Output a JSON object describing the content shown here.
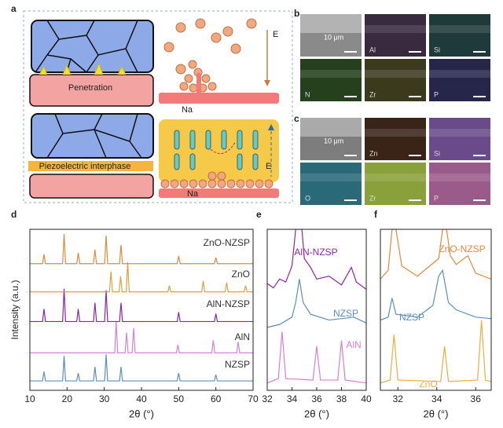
{
  "panel_labels": [
    "a",
    "b",
    "c",
    "d",
    "e",
    "f"
  ],
  "schematic": {
    "penetration": "Penetration",
    "interphase": "Piezoelectric interphase",
    "na_top": "Na",
    "na_bottom": "Na",
    "field_top": "E",
    "field_bottom": "E"
  },
  "eds": [
    {
      "tiles": [
        {
          "label": "10 μm",
          "color": "#8a8a8a"
        },
        {
          "label": "Al",
          "color": "#3a2a40"
        },
        {
          "label": "Si",
          "color": "#1f3a3a"
        },
        {
          "label": "N",
          "color": "#24401c"
        },
        {
          "label": "Zr",
          "color": "#3c3a1c"
        },
        {
          "label": "P",
          "color": "#26264a"
        }
      ]
    },
    {
      "tiles": [
        {
          "label": "10 μm",
          "color": "#7d7d7d"
        },
        {
          "label": "Zn",
          "color": "#3a2418"
        },
        {
          "label": "Si",
          "color": "#6a4a8a"
        },
        {
          "label": "O",
          "color": "#2a6a78"
        },
        {
          "label": "Zr",
          "color": "#8aa03a"
        },
        {
          "label": "P",
          "color": "#9a5a8a"
        }
      ]
    }
  ],
  "chart_data": [
    {
      "type": "line",
      "x_label": "2θ (°)",
      "y_label": "Intensity (a.u.)",
      "xlim": [
        10,
        70
      ],
      "xticks": [
        10,
        20,
        30,
        40,
        50,
        60,
        70
      ],
      "ylim": [
        0,
        10.3
      ],
      "label_color": "#333333",
      "series": [
        {
          "name": "NZSP",
          "color": "#5b8fbf",
          "x": [
            10,
            13.4,
            13.8,
            14.2,
            18.8,
            19.2,
            19.6,
            22.6,
            23,
            23.4,
            27.1,
            27.5,
            27.9,
            30.1,
            30.5,
            30.9,
            34.1,
            34.5,
            34.9,
            49.6,
            50,
            50.4,
            59.6,
            60,
            60.4,
            70
          ],
          "values": [
            0.6,
            0.6,
            1.2,
            0.6,
            0.6,
            2.2,
            0.6,
            0.6,
            1.1,
            0.6,
            0.6,
            1.5,
            0.6,
            0.6,
            2.3,
            0.6,
            0.6,
            1.5,
            0.6,
            0.6,
            1.1,
            0.6,
            0.6,
            1.0,
            0.6,
            0.6
          ]
        },
        {
          "name": "AlN",
          "color": "#d67fd6",
          "x": [
            10,
            32.8,
            33.2,
            33.6,
            35.6,
            36,
            36.4,
            37.5,
            37.9,
            38.3,
            49.4,
            49.8,
            50.2,
            58.9,
            59.3,
            59.7,
            65.6,
            66,
            66.4,
            70
          ],
          "values": [
            2.4,
            2.4,
            4.4,
            2.4,
            2.4,
            3.7,
            2.4,
            2.4,
            4.0,
            2.4,
            2.4,
            2.9,
            2.4,
            2.4,
            3.2,
            2.4,
            2.4,
            3.1,
            2.4,
            2.4
          ]
        },
        {
          "name": "AlN-NZSP",
          "color": "#8e24aa",
          "x": [
            10,
            13.4,
            13.8,
            14.2,
            18.8,
            19.2,
            19.6,
            22.6,
            23,
            23.4,
            27.1,
            27.5,
            27.9,
            30.1,
            30.5,
            30.9,
            34.1,
            34.5,
            34.9,
            49.6,
            50,
            50.4,
            59.6,
            60,
            60.4,
            70
          ],
          "values": [
            4.4,
            4.4,
            5.2,
            4.4,
            4.4,
            6.5,
            4.4,
            4.4,
            5.2,
            4.4,
            4.4,
            5.6,
            4.4,
            4.4,
            6.4,
            4.4,
            4.4,
            5.6,
            4.4,
            4.4,
            5.0,
            4.4,
            4.4,
            4.9,
            4.4,
            4.4
          ]
        },
        {
          "name": "ZnO",
          "color": "#e0a040",
          "x": [
            10,
            31.4,
            31.8,
            32.2,
            34,
            34.4,
            34.8,
            35.9,
            36.3,
            36.7,
            47.1,
            47.5,
            47.9,
            56.2,
            56.6,
            57,
            62.5,
            62.9,
            63.3,
            67.6,
            68,
            68.4,
            70
          ],
          "values": [
            6.3,
            6.3,
            7.6,
            6.3,
            6.3,
            7.3,
            6.3,
            6.3,
            8.2,
            6.3,
            6.3,
            6.7,
            6.3,
            6.3,
            7.0,
            6.3,
            6.3,
            6.9,
            6.3,
            6.3,
            6.7,
            6.3,
            6.3
          ]
        },
        {
          "name": "ZnO-NZSP",
          "color": "#e08a3c",
          "x": [
            10,
            13.4,
            13.8,
            14.2,
            18.8,
            19.2,
            19.6,
            22.6,
            23,
            23.4,
            27.1,
            27.5,
            27.9,
            30.1,
            30.5,
            30.9,
            34.1,
            34.5,
            34.9,
            49.6,
            50,
            50.4,
            59.6,
            60,
            60.4,
            70
          ],
          "values": [
            8.1,
            8.1,
            8.7,
            8.1,
            8.1,
            10.0,
            8.1,
            8.1,
            8.8,
            8.1,
            8.1,
            9.0,
            8.1,
            8.1,
            9.9,
            8.1,
            8.1,
            9.3,
            8.1,
            8.1,
            8.6,
            8.1,
            8.1,
            8.5,
            8.1,
            8.1
          ]
        }
      ]
    },
    {
      "type": "line",
      "x_label": "2θ (°)",
      "xlim": [
        32,
        40
      ],
      "xticks": [
        32,
        34,
        36,
        38,
        40
      ],
      "ylim": [
        0,
        11
      ],
      "series": [
        {
          "name": "AlN",
          "color": "#d67fd6",
          "x": [
            32,
            32.9,
            33.2,
            33.5,
            35.7,
            36,
            36.3,
            37.7,
            38,
            38.3,
            40
          ],
          "values": [
            0.5,
            0.8,
            4.0,
            0.8,
            0.7,
            3.0,
            0.7,
            0.7,
            3.4,
            0.7,
            0.5
          ]
        },
        {
          "name": "NZSP",
          "color": "#5b8fbf",
          "x": [
            32,
            33,
            34,
            34.3,
            34.6,
            34.9,
            35.5,
            37,
            39,
            40
          ],
          "values": [
            4.3,
            4.5,
            5.0,
            6.0,
            7.6,
            6.0,
            5.2,
            4.8,
            5.0,
            4.6
          ]
        },
        {
          "name": "AlN-NZSP",
          "color": "#8e24aa",
          "x": [
            32,
            32.5,
            33,
            33.5,
            34,
            34.3,
            34.5,
            34.8,
            35,
            35.5,
            36,
            37,
            38,
            38.8,
            39.2,
            40
          ],
          "values": [
            7.3,
            7.0,
            7.6,
            7.4,
            8.5,
            11,
            11,
            11,
            9.0,
            8.4,
            7.6,
            7.8,
            7.2,
            8.4,
            7.4,
            6.9
          ]
        }
      ]
    },
    {
      "type": "line",
      "x_label": "2θ (°)",
      "xlim": [
        31.1,
        36.8
      ],
      "xticks": [
        32,
        34,
        36
      ],
      "ylim": [
        0,
        11
      ],
      "series": [
        {
          "name": "ZnO",
          "color": "#e8b040",
          "x": [
            31.1,
            31.6,
            31.8,
            32.0,
            34.2,
            34.4,
            34.6,
            36.1,
            36.3,
            36.5,
            36.8
          ],
          "values": [
            0.5,
            0.7,
            3.8,
            0.7,
            0.6,
            3.0,
            0.6,
            0.7,
            4.8,
            0.7,
            0.6
          ]
        },
        {
          "name": "NZSP",
          "color": "#5b8fbf",
          "x": [
            31.1,
            31.5,
            31.7,
            31.9,
            33,
            33.8,
            34.1,
            34.3,
            34.6,
            35,
            36,
            36.8
          ],
          "values": [
            4.8,
            5.0,
            6.3,
            5.2,
            5.0,
            5.8,
            7.8,
            8.2,
            6.0,
            5.5,
            5.0,
            4.9
          ]
        },
        {
          "name": "ZnO-NZSP",
          "color": "#e08a3c",
          "x": [
            31.1,
            31.5,
            31.7,
            31.8,
            31.9,
            32.2,
            33,
            34.1,
            34.3,
            34.5,
            34.7,
            35,
            35.6,
            36,
            36.8
          ],
          "values": [
            7.6,
            8.2,
            11,
            11,
            11,
            8.5,
            7.8,
            9,
            11,
            11,
            9.2,
            8.6,
            9.2,
            8.0,
            7.6
          ]
        }
      ]
    }
  ]
}
